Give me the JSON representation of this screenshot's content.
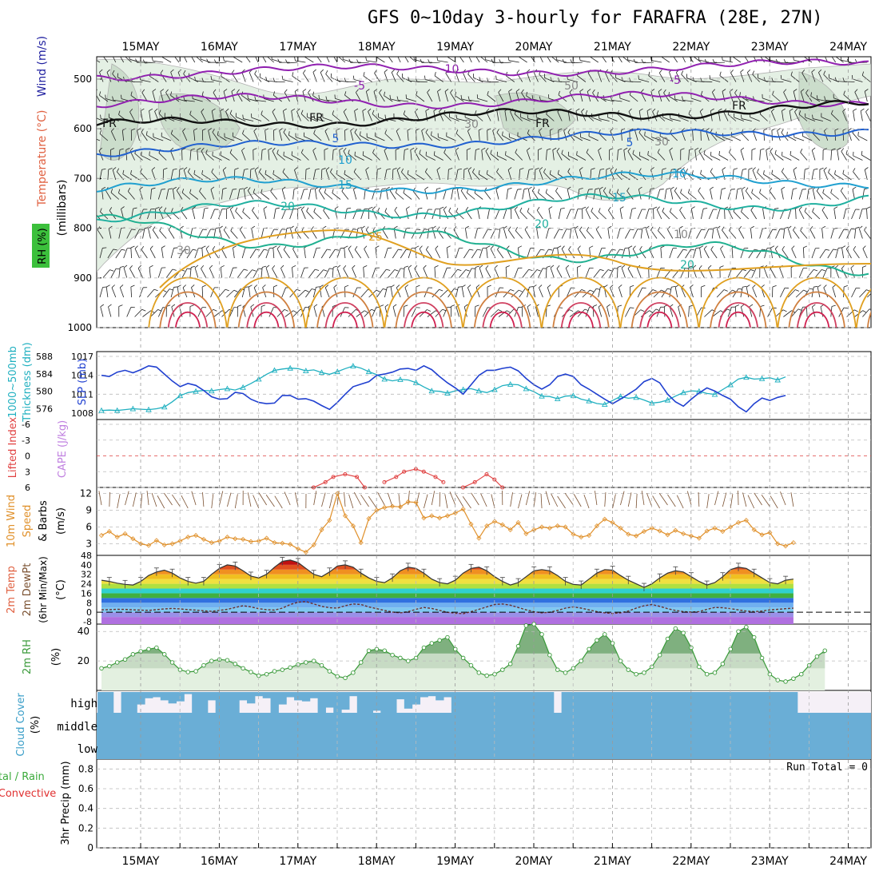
{
  "title": "GFS 0~10day 3-hourly for FARAFRA (28E, 27N)",
  "dates": [
    "15MAY",
    "16MAY",
    "17MAY",
    "18MAY",
    "19MAY",
    "20MAY",
    "21MAY",
    "22MAY",
    "23MAY",
    "24MAY"
  ],
  "colors": {
    "lifted_index": "#e04040",
    "cape": "#c080e0",
    "thickness": "#20b0c0",
    "slp": "#2040d0",
    "wind_speed": "#e0902a",
    "rh2m": "#3a9a3a",
    "cloud": "#6aaed6",
    "cloud_label": "#3a9ec8",
    "precip_total": "#3aaa3a",
    "precip_convective": "#e03030",
    "rh_shade": "#3cc03c",
    "temp_label": "#e06040",
    "wind_label": "#2020a0"
  },
  "panels": {
    "upper_air": {
      "ylabel": "(millibars)",
      "legend_rh": "RH (%)",
      "legend_temp": "Temperature (°C)",
      "legend_wind": "Wind (m/s)",
      "ticks": [
        "500",
        "600",
        "700",
        "800",
        "900",
        "1000"
      ],
      "contour_labels": [
        "-10",
        "-5",
        "FR",
        "FR",
        "FR",
        "FR",
        "-5",
        "5",
        "5",
        "10",
        "10",
        "15",
        "15",
        "20",
        "20",
        "20",
        "25",
        "30",
        "30",
        "50",
        "30",
        "10"
      ]
    },
    "thickness_slp": {
      "label_left": "1000~500mb",
      "label_left2": "Thickness (dm)",
      "label_right": "SLP (mb)",
      "ticks_left": [
        "588",
        "584",
        "580",
        "576"
      ],
      "ticks_right": [
        "1017",
        "1014",
        "1011",
        "1008"
      ]
    },
    "stability": {
      "label_li": "Lifted Index",
      "label_cape": "CAPE (J/kg)",
      "ticks": [
        "-6",
        "-3",
        "0",
        "3",
        "6"
      ]
    },
    "wind10m": {
      "label1": "10m Wind",
      "label2": "Speed",
      "label3": "& Barbs",
      "unit": "(m/s)",
      "ticks": [
        "12",
        "9",
        "6",
        "3"
      ]
    },
    "temp2m": {
      "label1": "2m Temp",
      "label2": "2m DewPt",
      "label3": "(6hr Min/Max)",
      "unit": "(°C)",
      "ticks": [
        "48",
        "40",
        "32",
        "24",
        "16",
        "8",
        "0",
        "-8"
      ]
    },
    "rh2m": {
      "label": "2m RH",
      "unit": "(%)",
      "ticks": [
        "40",
        "20"
      ]
    },
    "cloud": {
      "label": "Cloud Cover",
      "unit": "(%)",
      "levels": [
        "high",
        "middle",
        "low"
      ]
    },
    "precip": {
      "label1": "3hr Precip (mm)",
      "label_total": "Total / Rain",
      "label_conv": "Convective",
      "run_total": "Run Total = 0",
      "ticks": [
        "0.8",
        "0.6",
        "0.4",
        "0.2",
        "0"
      ]
    }
  },
  "chart_data": [
    {
      "type": "line",
      "name": "thickness_slp",
      "x_unit": "3-hour steps from 14MAY 12Z",
      "series": [
        {
          "name": "SLP (mb)",
          "axis": "right",
          "ylim": [
            1008,
            1017
          ],
          "values": [
            1014,
            1013.8,
            1014.5,
            1014.8,
            1014.4,
            1014.9,
            1015.5,
            1015.3,
            1014.2,
            1013.1,
            1012.2,
            1012.7,
            1012.4,
            1011.6,
            1010.6,
            1010.2,
            1010.3,
            1011.3,
            1011.1,
            1010.2,
            1009.7,
            1009.5,
            1009.6,
            1010.8,
            1010.8,
            1010.2,
            1010.3,
            1009.9,
            1009.2,
            1008.6,
            1009.7,
            1011.0,
            1012.2,
            1012.6,
            1013.0,
            1014.0,
            1014.2,
            1014.5,
            1015.0,
            1015.1,
            1014.8,
            1015.5,
            1014.9,
            1013.8,
            1012.8,
            1012.0,
            1011.0,
            1012.5,
            1014.0,
            1014.8,
            1014.8,
            1015.1,
            1015.3,
            1014.7,
            1013.5,
            1012.5,
            1011.8,
            1012.5,
            1013.8,
            1014.2,
            1013.8,
            1012.5,
            1011.8,
            1011.0,
            1010.2,
            1009.5,
            1010.2,
            1011.0,
            1011.8,
            1013.0,
            1013.5,
            1012.8,
            1011.0,
            1009.8,
            1009.1,
            1010.2,
            1011.2,
            1012.0,
            1011.5,
            1010.8,
            1010.2,
            1009.0,
            1008.2,
            1009.5,
            1010.4,
            1010.0,
            1010.5,
            1010.8
          ]
        },
        {
          "name": "Thickness (dm)",
          "axis": "left",
          "ylim": [
            575,
            588
          ],
          "values": [
            575.6,
            575.7,
            575.6,
            575.8,
            576.0,
            575.9,
            575.8,
            576.0,
            576.4,
            577.6,
            579.0,
            579.7,
            580.0,
            580.2,
            580.1,
            580.4,
            580.6,
            580.3,
            580.9,
            581.8,
            582.8,
            583.9,
            584.8,
            585.1,
            585.3,
            585.2,
            584.7,
            584.9,
            584.3,
            583.9,
            584.5,
            585.2,
            585.8,
            585.3,
            584.5,
            583.8,
            582.8,
            582.4,
            582.7,
            582.6,
            582.0,
            581.0,
            580.1,
            580.0,
            579.6,
            580.1,
            580.4,
            580.6,
            580.1,
            579.7,
            580.4,
            581.3,
            581.6,
            581.5,
            580.6,
            579.9,
            578.9,
            578.8,
            578.3,
            578.9,
            579.0,
            578.2,
            577.8,
            577.2,
            577.0,
            577.9,
            578.8,
            578.4,
            578.6,
            578.0,
            577.3,
            577.5,
            578.0,
            578.9,
            579.7,
            580.1,
            580.0,
            579.5,
            579.3,
            580.4,
            581.5,
            582.8,
            583.2,
            582.8,
            582.9,
            583.1,
            582.6,
            583.3
          ]
        }
      ]
    },
    {
      "type": "line",
      "name": "lifted_index",
      "ylim": [
        6,
        -6
      ],
      "segments": [
        {
          "x_day": [
            2.2,
            2.35,
            2.45,
            2.6,
            2.75,
            2.85
          ],
          "values": [
            6,
            5,
            4,
            3.5,
            4,
            6
          ]
        },
        {
          "x_day": [
            3.1,
            3.25,
            3.35,
            3.5,
            3.6,
            3.75,
            3.85
          ],
          "values": [
            5,
            4,
            3,
            2.5,
            3,
            4,
            5
          ]
        },
        {
          "x_day": [
            4.1,
            4.25,
            4.4,
            4.5,
            4.6
          ],
          "values": [
            6,
            5,
            3.5,
            4.5,
            6
          ]
        }
      ]
    },
    {
      "type": "line",
      "name": "10m wind speed (m/s)",
      "ylim": [
        1.5,
        12.5
      ],
      "values": [
        4.5,
        5.2,
        4.2,
        4.8,
        3.9,
        3.0,
        2.7,
        3.6,
        2.8,
        3.0,
        3.5,
        4.2,
        4.5,
        3.8,
        3.2,
        3.5,
        4.2,
        3.9,
        3.8,
        3.4,
        3.5,
        4.0,
        3.2,
        3.1,
        2.9,
        2.1,
        1.5,
        2.8,
        5.5,
        7.2,
        12.0,
        8.0,
        6.2,
        3.2,
        7.5,
        9.0,
        9.5,
        9.7,
        9.6,
        10.5,
        10.4,
        7.6,
        8.0,
        7.6,
        8.0,
        8.5,
        9.2,
        6.5,
        4.0,
        6.2,
        7.0,
        6.4,
        5.5,
        6.8,
        4.8,
        5.5,
        6.0,
        5.8,
        6.2,
        6.0,
        4.7,
        4.2,
        4.5,
        6.2,
        7.4,
        6.8,
        5.8,
        4.7,
        4.4,
        5.2,
        5.8,
        5.3,
        4.6,
        5.4,
        4.8,
        4.4,
        4.0,
        5.3,
        5.8,
        5.2,
        6.0,
        6.8,
        7.2,
        5.5,
        4.6,
        5.0,
        3.0,
        2.6,
        3.2
      ]
    },
    {
      "type": "area",
      "name": "2m temperature (°C)",
      "ylim": [
        -10,
        48
      ],
      "values": [
        27,
        26,
        24.5,
        23.5,
        23,
        26,
        31,
        34,
        35.5,
        33,
        29,
        26,
        24.5,
        26,
        32,
        37,
        40,
        39,
        35,
        30.5,
        29,
        32,
        38,
        43,
        44,
        42,
        37,
        32,
        30,
        34,
        39,
        40,
        38,
        33,
        29,
        26,
        25,
        29,
        35,
        38,
        37,
        33,
        28,
        25,
        24,
        27,
        33,
        37,
        38,
        35,
        30,
        26,
        23,
        25,
        30,
        35,
        36,
        35,
        31,
        26,
        23.5,
        23,
        28,
        33,
        36,
        35.5,
        31,
        27,
        24,
        21,
        24,
        29,
        33,
        35,
        34,
        30,
        26,
        23,
        25,
        30,
        36,
        38,
        37,
        33,
        29,
        25,
        24,
        27,
        28
      ]
    },
    {
      "type": "line",
      "name": "2m dew point (°C)",
      "ylim": [
        -10,
        48
      ],
      "values": [
        2,
        2.2,
        2.5,
        2.4,
        2,
        1.8,
        1.5,
        2.2,
        2.8,
        3.2,
        2.8,
        2.2,
        1.8,
        1.2,
        0.8,
        1.5,
        2.5,
        4.0,
        5.5,
        4.5,
        3.0,
        2.2,
        1.8,
        3.5,
        6.5,
        8.5,
        9.0,
        7.0,
        5.0,
        3.8,
        3.5,
        5.5,
        7.0,
        6.5,
        4.5,
        3.0,
        1.5,
        0.2,
        -0.5,
        0.5,
        2.5,
        4.0,
        3.2,
        1.5,
        0,
        -0.8,
        -1.2,
        0.5,
        2.5,
        4.5,
        6.5,
        7.0,
        6.0,
        4.0,
        2.0,
        0.5,
        -0.5,
        0,
        1.5,
        3.5,
        4.5,
        3.5,
        2.0,
        0.5,
        -0.5,
        -1.0,
        -0.5,
        1.0,
        3.5,
        5.5,
        6.5,
        5.0,
        3.0,
        1.5,
        0.5,
        0.2,
        0.5,
        2.5,
        4.0,
        3.8,
        3.0,
        2.0,
        1.0,
        0.5,
        1.0,
        2.0,
        2.5,
        3.0,
        3.5
      ]
    },
    {
      "type": "area",
      "name": "2m RH (%)",
      "ylim": [
        0,
        45
      ],
      "values": [
        15,
        16.5,
        19,
        21,
        24.5,
        26.5,
        28,
        29,
        24.5,
        19,
        14,
        12.5,
        13,
        17,
        20,
        21,
        20.5,
        18,
        15,
        12.5,
        10,
        11,
        13,
        14,
        15.5,
        17.5,
        19,
        20,
        17,
        13,
        9.5,
        8.5,
        12,
        19,
        27,
        28,
        27,
        24,
        22,
        20,
        22,
        29,
        32,
        34,
        36,
        28,
        22,
        17,
        12,
        10,
        11,
        14,
        18,
        30,
        44,
        45,
        38,
        24,
        14,
        12,
        15,
        20,
        28,
        34,
        38,
        32,
        20,
        14,
        11,
        12,
        16,
        24,
        35,
        42,
        39,
        29,
        16,
        11,
        12,
        18,
        28,
        40,
        43,
        36,
        22,
        11,
        7,
        6,
        8,
        11,
        17,
        23,
        27
      ]
    },
    {
      "type": "bar",
      "name": "high cloud cover (%)",
      "ylim": [
        0,
        100
      ],
      "values": [
        100,
        100,
        0,
        100,
        100,
        60,
        30,
        25,
        40,
        55,
        45,
        10,
        100,
        100,
        40,
        100,
        100,
        100,
        40,
        55,
        20,
        30,
        100,
        60,
        25,
        40,
        45,
        30,
        100,
        75,
        100,
        85,
        20,
        100,
        100,
        90,
        100,
        100,
        35,
        80,
        60,
        25,
        20,
        40,
        25,
        100,
        100,
        100,
        100,
        100,
        100,
        100,
        100,
        100,
        100,
        100,
        100,
        100,
        0,
        100,
        100,
        100,
        100,
        100,
        100,
        100,
        100,
        100,
        100,
        100,
        100,
        100,
        100,
        100,
        100,
        100,
        100,
        100,
        100,
        100,
        100,
        100,
        100,
        100,
        100,
        100,
        100,
        100,
        100
      ]
    },
    {
      "type": "bar",
      "name": "3hr precip (mm)",
      "ylim": [
        0,
        0.9
      ],
      "values": [
        0,
        0,
        0,
        0,
        0,
        0,
        0,
        0,
        0,
        0,
        0,
        0,
        0,
        0,
        0,
        0,
        0,
        0,
        0,
        0,
        0,
        0,
        0,
        0,
        0,
        0,
        0,
        0,
        0,
        0,
        0,
        0,
        0,
        0,
        0,
        0,
        0,
        0,
        0,
        0,
        0,
        0,
        0,
        0,
        0,
        0,
        0,
        0,
        0,
        0,
        0,
        0,
        0,
        0,
        0,
        0,
        0,
        0,
        0,
        0,
        0,
        0,
        0,
        0,
        0,
        0,
        0,
        0,
        0,
        0,
        0,
        0,
        0,
        0,
        0,
        0,
        0,
        0,
        0,
        0,
        0,
        0,
        0,
        0,
        0,
        0,
        0,
        0,
        0
      ]
    }
  ]
}
